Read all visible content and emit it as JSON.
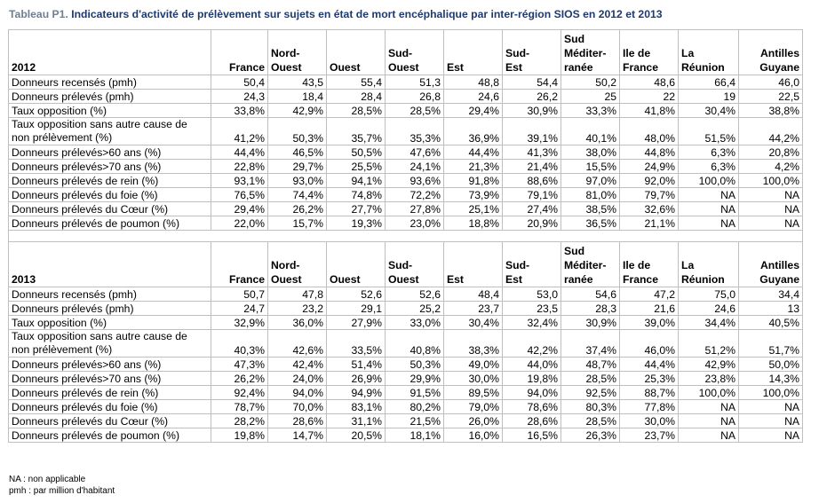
{
  "title": {
    "prefix": "Tableau P1.",
    "text": " Indicateurs d'activité de prélèvement sur sujets en état de mort encéphalique par inter-région SIOS en 2012  et 2013"
  },
  "columns": [
    "France",
    "Nord-\nOuest",
    "Ouest",
    "Sud-\nOuest",
    "Est",
    "Sud-\nEst",
    "Sud\nMéditer-\nranée",
    "Ile de\nFrance",
    "La\nRéunion",
    "Antilles\nGuyane"
  ],
  "sections": [
    {
      "year": "2012",
      "rows": [
        {
          "label": "Donneurs recensés (pmh)",
          "values": [
            "50,4",
            "43,5",
            "55,4",
            "51,3",
            "48,8",
            "54,4",
            "50,2",
            "48,6",
            "66,4",
            "46,0"
          ]
        },
        {
          "label": "Donneurs prélevés (pmh)",
          "values": [
            "24,3",
            "18,4",
            "28,4",
            "26,8",
            "24,6",
            "26,2",
            "25",
            "22",
            "19",
            "22,5"
          ]
        },
        {
          "label": "Taux opposition (%)",
          "values": [
            "33,8%",
            "42,9%",
            "28,5%",
            "28,5%",
            "29,4%",
            "30,9%",
            "33,3%",
            "41,8%",
            "30,4%",
            "38,8%"
          ]
        },
        {
          "label": "Taux opposition sans autre cause de non prélèvement (%)",
          "values": [
            "41,2%",
            "50,3%",
            "35,7%",
            "35,3%",
            "36,9%",
            "39,1%",
            "40,1%",
            "48,0%",
            "51,5%",
            "44,2%"
          ]
        },
        {
          "label": "Donneurs prélevés>60 ans (%)",
          "values": [
            "44,4%",
            "46,5%",
            "50,5%",
            "47,6%",
            "44,4%",
            "41,3%",
            "38,0%",
            "44,8%",
            "6,3%",
            "20,8%"
          ]
        },
        {
          "label": "Donneurs prélevés>70 ans (%)",
          "values": [
            "22,8%",
            "29,7%",
            "25,5%",
            "24,1%",
            "21,3%",
            "21,4%",
            "15,5%",
            "24,9%",
            "6,3%",
            "4,2%"
          ]
        },
        {
          "label": "Donneurs prélevés de rein (%)",
          "values": [
            "93,1%",
            "93,0%",
            "94,1%",
            "93,6%",
            "91,8%",
            "88,6%",
            "97,0%",
            "92,0%",
            "100,0%",
            "100,0%"
          ]
        },
        {
          "label": "Donneurs prélevés du foie (%)",
          "values": [
            "76,5%",
            "74,4%",
            "74,8%",
            "72,2%",
            "73,9%",
            "79,1%",
            "81,0%",
            "79,7%",
            "NA",
            "NA"
          ]
        },
        {
          "label": "Donneurs prélevés du Cœur (%)",
          "values": [
            "29,4%",
            "26,2%",
            "27,7%",
            "27,8%",
            "25,1%",
            "27,4%",
            "38,5%",
            "32,6%",
            "NA",
            "NA"
          ]
        },
        {
          "label": "Donneurs prélevés de poumon (%)",
          "values": [
            "22,0%",
            "15,7%",
            "19,3%",
            "23,0%",
            "18,8%",
            "20,9%",
            "36,5%",
            "21,1%",
            "NA",
            "NA"
          ]
        }
      ]
    },
    {
      "year": "2013",
      "rows": [
        {
          "label": "Donneurs recensés (pmh)",
          "values": [
            "50,7",
            "47,8",
            "52,6",
            "52,6",
            "48,4",
            "53,0",
            "54,6",
            "47,2",
            "75,0",
            "34,4"
          ]
        },
        {
          "label": "Donneurs prélevés (pmh)",
          "values": [
            "24,7",
            "23,2",
            "29,1",
            "25,2",
            "23,7",
            "23,5",
            "28,3",
            "21,6",
            "24,6",
            "13"
          ]
        },
        {
          "label": "Taux opposition (%)",
          "values": [
            "32,9%",
            "36,0%",
            "27,9%",
            "33,0%",
            "30,4%",
            "32,4%",
            "30,9%",
            "39,0%",
            "34,4%",
            "40,5%"
          ]
        },
        {
          "label": "Taux opposition sans autre cause de non prélèvement (%)",
          "values": [
            "40,3%",
            "42,6%",
            "33,5%",
            "40,8%",
            "38,3%",
            "42,2%",
            "37,4%",
            "46,0%",
            "51,2%",
            "51,7%"
          ]
        },
        {
          "label": "Donneurs prélevés>60 ans (%)",
          "values": [
            "47,3%",
            "42,4%",
            "51,4%",
            "50,3%",
            "49,0%",
            "44,0%",
            "48,7%",
            "44,4%",
            "42,9%",
            "50,0%"
          ]
        },
        {
          "label": "Donneurs prélevés>70 ans (%)",
          "values": [
            "26,2%",
            "24,0%",
            "26,9%",
            "29,9%",
            "30,0%",
            "19,8%",
            "28,5%",
            "25,3%",
            "23,8%",
            "14,3%"
          ]
        },
        {
          "label": "Donneurs prélevés de rein (%)",
          "values": [
            "92,4%",
            "94,0%",
            "94,9%",
            "91,5%",
            "89,5%",
            "94,0%",
            "92,5%",
            "88,7%",
            "100,0%",
            "100,0%"
          ]
        },
        {
          "label": "Donneurs prélevés du foie (%)",
          "values": [
            "78,7%",
            "70,0%",
            "83,1%",
            "80,2%",
            "79,0%",
            "78,6%",
            "80,3%",
            "77,8%",
            "NA",
            "NA"
          ]
        },
        {
          "label": "Donneurs prélevés du Cœur (%)",
          "values": [
            "28,2%",
            "28,6%",
            "31,1%",
            "21,5%",
            "26,0%",
            "28,6%",
            "28,5%",
            "30,0%",
            "NA",
            "NA"
          ]
        },
        {
          "label": "Donneurs prélevés de poumon (%)",
          "values": [
            "19,8%",
            "14,7%",
            "20,5%",
            "18,1%",
            "16,0%",
            "16,5%",
            "26,3%",
            "23,7%",
            "NA",
            "NA"
          ]
        }
      ]
    }
  ],
  "notes": [
    "NA : non applicable",
    "pmh : par million d'habitant"
  ],
  "colors": {
    "title_prefix": "#6f7f8f",
    "title_text": "#1f3a6e",
    "grid": "#bfbfbf"
  }
}
